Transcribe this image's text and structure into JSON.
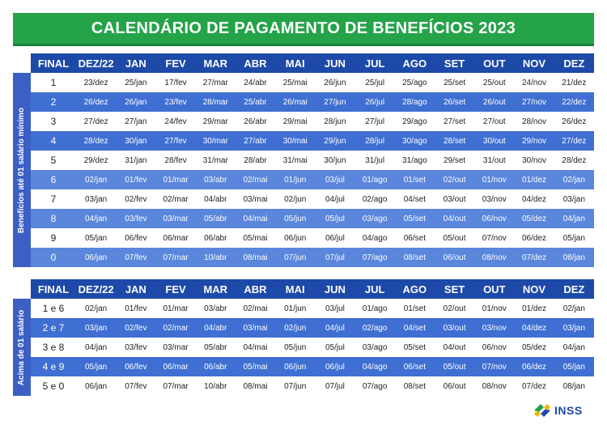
{
  "title": "CALENDÁRIO DE PAGAMENTO DE BENEFÍCIOS 2023",
  "columns": [
    "FINAL",
    "DEZ/22",
    "JAN",
    "FEV",
    "MAR",
    "ABR",
    "MAI",
    "JUN",
    "JUL",
    "AGO",
    "SET",
    "OUT",
    "NOV",
    "DEZ"
  ],
  "table1": {
    "side_label": "Benefícios até 01 salário mínimo",
    "rows": [
      [
        "1",
        "23/dez",
        "25/jan",
        "17/fev",
        "27/mar",
        "24/abr",
        "25/mai",
        "26/jun",
        "25/jul",
        "25/ago",
        "25/set",
        "25/out",
        "24/nov",
        "21/dez"
      ],
      [
        "2",
        "26/dez",
        "26/jan",
        "23/fev",
        "28/mar",
        "25/abr",
        "26/mai",
        "27/jun",
        "26/jul",
        "28/ago",
        "26/set",
        "26/out",
        "27/nov",
        "22/dez"
      ],
      [
        "3",
        "27/dez",
        "27/jan",
        "24/fev",
        "29/mar",
        "26/abr",
        "29/mai",
        "28/jun",
        "27/jul",
        "29/ago",
        "27/set",
        "27/out",
        "28/nov",
        "26/dez"
      ],
      [
        "4",
        "28/dez",
        "30/jan",
        "27/fev",
        "30/mar",
        "27/abr",
        "30/mai",
        "29/jun",
        "28/jul",
        "30/ago",
        "28/set",
        "30/out",
        "29/nov",
        "27/dez"
      ],
      [
        "5",
        "29/dez",
        "31/jan",
        "28/fev",
        "31/mar",
        "28/abr",
        "31/mai",
        "30/jun",
        "31/jul",
        "31/ago",
        "29/set",
        "31/out",
        "30/nov",
        "28/dez"
      ],
      [
        "6",
        "02/jan",
        "01/fev",
        "01/mar",
        "03/abr",
        "02/mai",
        "01/jun",
        "03/jul",
        "01/ago",
        "01/set",
        "02/out",
        "01/nov",
        "01/dez",
        "02/jan"
      ],
      [
        "7",
        "03/jan",
        "02/fev",
        "02/mar",
        "04/abr",
        "03/mai",
        "02/jun",
        "04/jul",
        "02/ago",
        "04/set",
        "03/out",
        "03/nov",
        "04/dez",
        "03/jan"
      ],
      [
        "8",
        "04/jan",
        "03/fev",
        "03/mar",
        "05/abr",
        "04/mai",
        "05/jun",
        "05/jul",
        "03/ago",
        "05/set",
        "04/out",
        "06/nov",
        "05/dez",
        "04/jan"
      ],
      [
        "9",
        "05/jan",
        "06/fev",
        "06/mar",
        "06/abr",
        "05/mai",
        "06/jun",
        "06/jul",
        "04/ago",
        "06/set",
        "05/out",
        "07/nov",
        "06/dez",
        "05/jan"
      ],
      [
        "0",
        "06/jan",
        "07/fev",
        "07/mar",
        "10/abr",
        "08/mai",
        "07/jun",
        "07/jul",
        "07/ago",
        "08/set",
        "06/out",
        "08/nov",
        "07/dez",
        "08/jan"
      ]
    ]
  },
  "table2": {
    "side_label": "Acima de 01 salário",
    "rows": [
      [
        "1 e 6",
        "02/jan",
        "01/fev",
        "01/mar",
        "03/abr",
        "02/mai",
        "01/jun",
        "03/jul",
        "01/ago",
        "01/set",
        "02/out",
        "01/nov",
        "01/dez",
        "02/jan"
      ],
      [
        "2 e 7",
        "03/jan",
        "02/fev",
        "02/mar",
        "04/abr",
        "03/mai",
        "02/jun",
        "04/jul",
        "02/ago",
        "04/set",
        "03/out",
        "03/nov",
        "04/dez",
        "03/jan"
      ],
      [
        "3 e 8",
        "04/jan",
        "03/fev",
        "03/mar",
        "05/abr",
        "04/mai",
        "05/jun",
        "05/jul",
        "03/ago",
        "05/set",
        "04/out",
        "06/nov",
        "05/dez",
        "04/jan"
      ],
      [
        "4 e 9",
        "05/jan",
        "06/fev",
        "06/mar",
        "06/abr",
        "05/mai",
        "06/jun",
        "06/jul",
        "04/ago",
        "06/set",
        "05/out",
        "07/nov",
        "06/dez",
        "05/jan"
      ],
      [
        "5 e 0",
        "06/jan",
        "07/fev",
        "07/mar",
        "10/abr",
        "08/mai",
        "07/jun",
        "07/jul",
        "07/ago",
        "08/set",
        "06/out",
        "08/nov",
        "07/dez",
        "08/jan"
      ]
    ]
  },
  "logo": {
    "text": "INSS",
    "icon": "inss-logo-icon"
  },
  "colors": {
    "title_green": "#24a349",
    "header_blue": "#1d49a8",
    "row_blue": "#3f6fd2"
  }
}
